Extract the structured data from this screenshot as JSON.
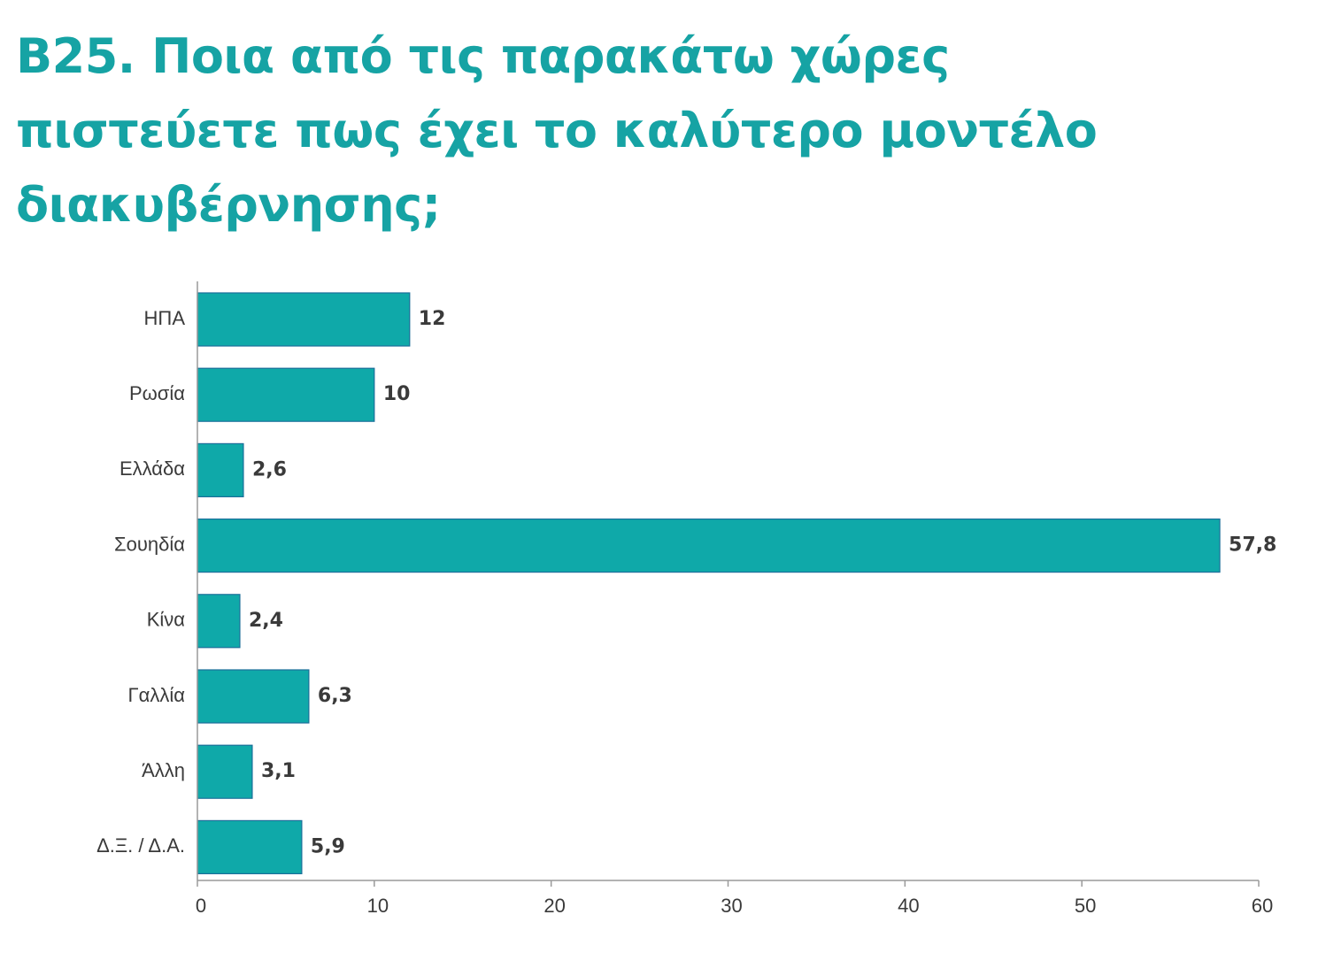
{
  "title": "Β25. Ποια από τις παρακάτω χώρες πιστεύετε πως έχει το καλύτερο μοντέλο διακυβέρνησης;",
  "colors": {
    "title": "#16a3a4",
    "bar": "#0fa9a9",
    "bar_stroke": "#1b6f9a",
    "axis": "#9a9a9a",
    "text": "#3a3a3a"
  },
  "chart_data": {
    "type": "bar",
    "orientation": "horizontal",
    "categories": [
      "ΗΠΑ",
      "Ρωσία",
      "Ελλάδα",
      "Σουηδία",
      "Κίνα",
      "Γαλλία",
      "Άλλη",
      "Δ.Ξ. / Δ.Α."
    ],
    "values": [
      12,
      10,
      2.6,
      57.8,
      2.4,
      6.3,
      3.1,
      5.9
    ],
    "value_labels": [
      "12",
      "10",
      "2,6",
      "57,8",
      "2,4",
      "6,3",
      "3,1",
      "5,9"
    ],
    "xlim": [
      0,
      60
    ],
    "xticks": [
      0,
      10,
      20,
      30,
      40,
      50,
      60
    ],
    "xtick_labels": [
      "0",
      "10",
      "20",
      "30",
      "40",
      "50",
      "60"
    ],
    "xlabel": "",
    "ylabel": "",
    "grid": false,
    "legend": "none"
  }
}
